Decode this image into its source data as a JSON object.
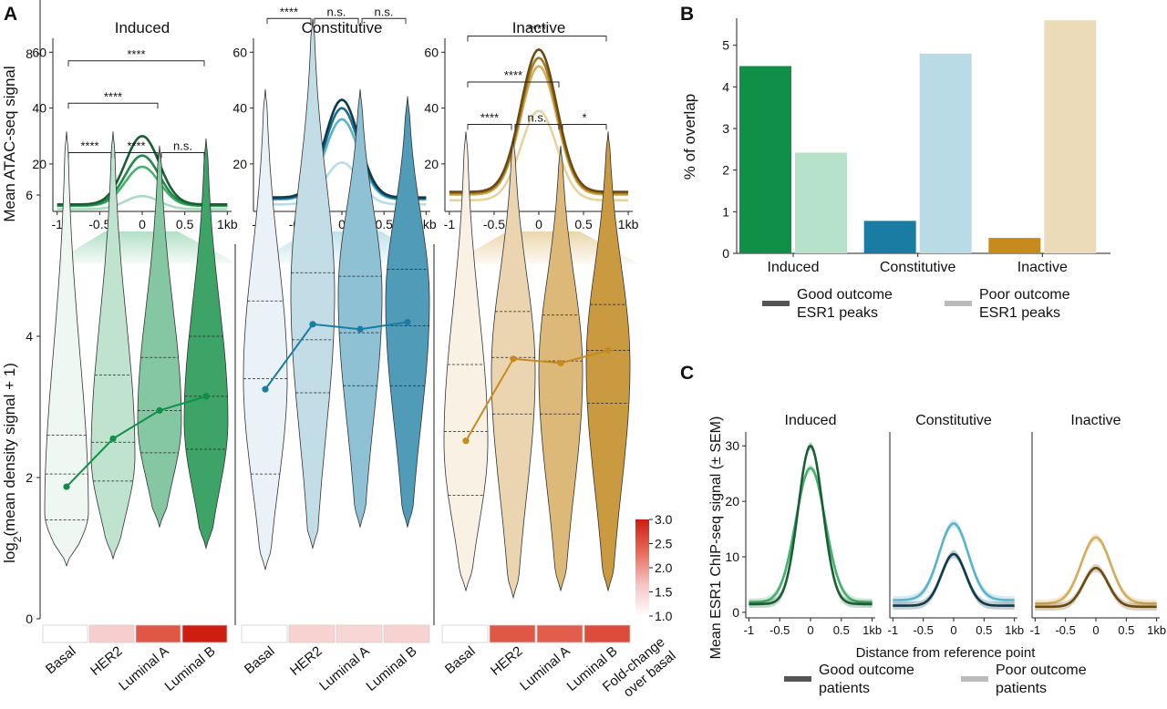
{
  "panel_labels": {
    "a": "A",
    "b": "B",
    "c": "C"
  },
  "colors": {
    "induced": [
      "#1a5e36",
      "#1e8a4a",
      "#48b06c",
      "#a9dcc0"
    ],
    "constitutive": [
      "#0f3a4c",
      "#1c6e8e",
      "#5ab2cc",
      "#b7dde8"
    ],
    "inactive": [
      "#6b4a12",
      "#a57a22",
      "#d2ae5e",
      "#e8d2a2"
    ],
    "pairs": {
      "induced": [
        "#0f8f47",
        "#b6e2ca"
      ],
      "constitutive": [
        "#1a7ca2",
        "#b8dbe5"
      ],
      "inactive": [
        "#c78b1d",
        "#ecdbb9"
      ]
    },
    "fold_scale": [
      "#ffffff",
      "#f5c2c2",
      "#e66a57",
      "#cf1d12"
    ]
  },
  "chart_data": [
    {
      "id": "A-top",
      "type": "line",
      "ylabel": "Mean ATAC-seq signal",
      "xticks": [
        "-1",
        "-0.5",
        "0",
        "0.5",
        "1kb"
      ],
      "yticks": [
        20,
        40,
        60
      ],
      "ylim": [
        3,
        65
      ],
      "xlim": [
        -1.05,
        1.05
      ],
      "panels": [
        {
          "name": "Induced",
          "color_key": "induced",
          "peaks": [
            30,
            23,
            19,
            8.5
          ],
          "bases": [
            5.5,
            5.2,
            5.0,
            3.8
          ]
        },
        {
          "name": "Constitutive",
          "color_key": "constitutive",
          "peaks": [
            43,
            40,
            36,
            20.5
          ],
          "bases": [
            8,
            7.6,
            7.3,
            5.5
          ]
        },
        {
          "name": "Inactive",
          "color_key": "inactive",
          "peaks": [
            61,
            58,
            55,
            39
          ],
          "bases": [
            10,
            9.5,
            9,
            7
          ]
        }
      ]
    },
    {
      "id": "A-violin",
      "type": "violin",
      "ylabel": "log2(mean density signal + 1)",
      "ylim": [
        0,
        9
      ],
      "yticks": [
        0,
        2,
        4,
        6,
        8
      ],
      "categories": [
        "Basal",
        "HER2",
        "Luminal A",
        "Luminal B"
      ],
      "groups": [
        {
          "name": "Induced",
          "color_key": "induced",
          "violin_fills": [
            "#eef7f1",
            "#bfe3cf",
            "#84c7a2",
            "#3ea366"
          ],
          "means": [
            1.87,
            2.55,
            2.95,
            3.15
          ],
          "ranges": [
            [
              0.75,
              6.9
            ],
            [
              0.85,
              6.9
            ],
            [
              1.3,
              6.7
            ],
            [
              1.0,
              6.8
            ]
          ],
          "quartiles": [
            [
              1.4,
              2.05,
              2.6
            ],
            [
              1.95,
              2.5,
              3.45
            ],
            [
              2.35,
              2.95,
              3.7
            ],
            [
              2.4,
              3.15,
              4.0
            ]
          ],
          "modes": [
            1.5,
            2.3,
            2.8,
            2.8
          ],
          "brackets": [
            {
              "from": 0,
              "to": 1,
              "label": "****",
              "y": 6.6
            },
            {
              "from": 1,
              "to": 2,
              "label": "****",
              "y": 6.6
            },
            {
              "from": 2,
              "to": 3,
              "label": "n.s.",
              "y": 6.6
            },
            {
              "from": 0,
              "to": 2,
              "label": "****",
              "y": 7.3
            },
            {
              "from": 0,
              "to": 3,
              "label": "****",
              "y": 7.9
            }
          ],
          "fold_change": [
            1.0,
            1.55,
            2.5,
            3.0
          ]
        },
        {
          "name": "Constitutive",
          "color_key": "constitutive",
          "violin_fills": [
            "#eaf2f7",
            "#c3dde7",
            "#8ec1d4",
            "#4f9bb8"
          ],
          "means": [
            3.25,
            4.17,
            4.1,
            4.2
          ],
          "ranges": [
            [
              0.7,
              7.5
            ],
            [
              1.0,
              8.5
            ],
            [
              1.3,
              7.5
            ],
            [
              1.3,
              7.4
            ]
          ],
          "quartiles": [
            [
              2.05,
              3.4,
              4.5
            ],
            [
              3.2,
              3.95,
              4.9
            ],
            [
              3.3,
              4.05,
              4.85
            ],
            [
              3.3,
              4.15,
              4.95
            ]
          ],
          "modes": [
            3.4,
            4.6,
            4.6,
            4.5
          ],
          "brackets": [
            {
              "from": 0,
              "to": 1,
              "label": "****",
              "y": 8.5
            },
            {
              "from": 1,
              "to": 2,
              "label": "n.s.",
              "y": 8.5
            },
            {
              "from": 2,
              "to": 3,
              "label": "n.s.",
              "y": 8.5
            },
            {
              "from": 0,
              "to": 2,
              "label": "****",
              "y": 9.0
            },
            {
              "from": 0,
              "to": 3,
              "label": "****",
              "y": 9.55
            }
          ],
          "fold_change": [
            1.0,
            1.5,
            1.45,
            1.5
          ]
        },
        {
          "name": "Inactive",
          "color_key": "inactive",
          "violin_fills": [
            "#f8f1e4",
            "#ead5b0",
            "#ddb979",
            "#c99a40"
          ],
          "means": [
            2.52,
            3.68,
            3.62,
            3.8
          ],
          "ranges": [
            [
              0.4,
              6.9
            ],
            [
              0.3,
              6.8
            ],
            [
              0.4,
              6.7
            ],
            [
              0.4,
              6.9
            ]
          ],
          "quartiles": [
            [
              1.75,
              2.65,
              3.6
            ],
            [
              2.9,
              3.7,
              4.35
            ],
            [
              2.9,
              3.65,
              4.3
            ],
            [
              3.05,
              3.8,
              4.45
            ]
          ],
          "modes": [
            2.5,
            3.5,
            3.5,
            3.6
          ],
          "brackets": [
            {
              "from": 0,
              "to": 1,
              "label": "****",
              "y": 7.0
            },
            {
              "from": 1,
              "to": 2,
              "label": "n.s.",
              "y": 7.0
            },
            {
              "from": 2,
              "to": 3,
              "label": "*",
              "y": 7.0
            },
            {
              "from": 0,
              "to": 2,
              "label": "****",
              "y": 7.6
            },
            {
              "from": 0,
              "to": 3,
              "label": "****",
              "y": 8.25
            }
          ],
          "fold_change": [
            1.0,
            2.5,
            2.45,
            2.6
          ]
        }
      ],
      "colorbar": {
        "min": 1.0,
        "max": 3.0,
        "ticks": [
          "3.0",
          "2.5",
          "2.0",
          "1.5",
          "1.0"
        ],
        "label": "Fold-change over basal"
      }
    },
    {
      "id": "B",
      "type": "bar",
      "ylabel": "% of overlap",
      "categories": [
        "Induced",
        "Constitutive",
        "Inactive"
      ],
      "series": [
        {
          "name": "Good outcome ESR1 peaks",
          "values": [
            4.5,
            0.78,
            0.37
          ]
        },
        {
          "name": "Poor outcome ESR1 peaks",
          "values": [
            2.42,
            4.8,
            5.6
          ]
        }
      ],
      "ylim": [
        0,
        5.65
      ],
      "yticks": [
        0,
        1,
        2,
        3,
        4,
        5
      ],
      "legend": [
        {
          "line1": "Good outcome",
          "line2": "ESR1 peaks",
          "color": "#555555"
        },
        {
          "line1": "Poor outcome",
          "line2": "ESR1 peaks",
          "color": "#bbbbbb"
        }
      ]
    },
    {
      "id": "C",
      "type": "line",
      "ylabel": "Mean ESR1 ChIP-seq signal (± SEM)",
      "xlabel": "Distance from reference point",
      "xticks": [
        "-1",
        "-0.5",
        "0",
        "0.5",
        "1kb"
      ],
      "yticks": [
        0,
        10,
        20,
        30
      ],
      "ylim": [
        -1,
        32.5
      ],
      "xlim": [
        -1.05,
        1.05
      ],
      "panels": [
        {
          "name": "Induced",
          "color_key": "induced",
          "good": 30,
          "poor": 26,
          "good_base": 1.5,
          "poor_base": 1.8
        },
        {
          "name": "Constitutive",
          "color_key": "constitutive",
          "good": 10.5,
          "poor": 16,
          "good_base": 1.2,
          "poor_base": 2.2
        },
        {
          "name": "Inactive",
          "color_key": "inactive",
          "good": 8,
          "poor": 13.5,
          "good_base": 1.0,
          "poor_base": 1.6
        }
      ],
      "legend": [
        {
          "line1": "Good outcome",
          "line2": "patients",
          "color": "#555555"
        },
        {
          "line1": "Poor outcome",
          "line2": "patients",
          "color": "#bbbbbb"
        }
      ]
    }
  ]
}
